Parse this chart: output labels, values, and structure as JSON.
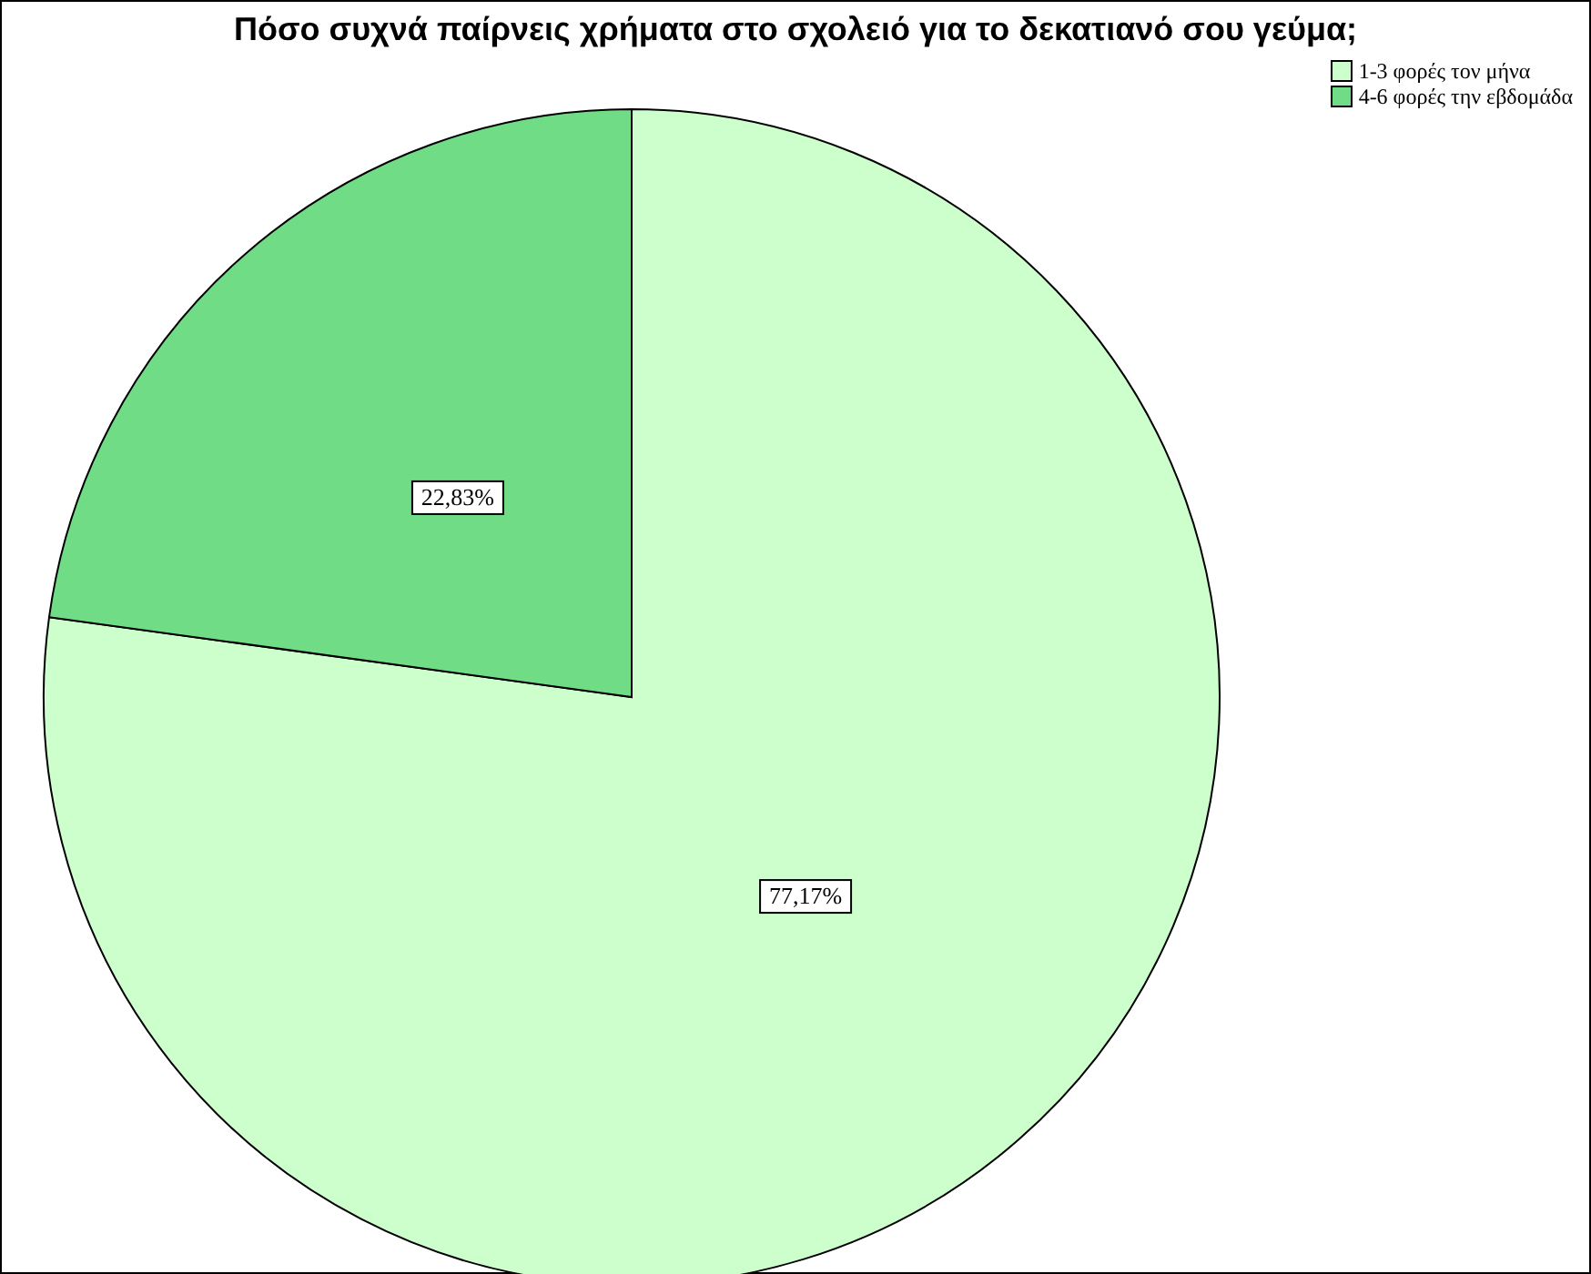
{
  "chart_data": {
    "type": "pie",
    "title": "Πόσο συχνά παίρνεις χρήματα στο σχολειό για το δεκατιανό σου γεύμα;",
    "categories": [
      "1-3 φορές τον μήνα",
      "4-6 φορές την εβδομάδα"
    ],
    "values": [
      77.17,
      22.83
    ],
    "colors": [
      "#ccffcc",
      "#70dc86"
    ],
    "value_labels": [
      "77,17%",
      "22,83%"
    ],
    "legend": "top right"
  }
}
